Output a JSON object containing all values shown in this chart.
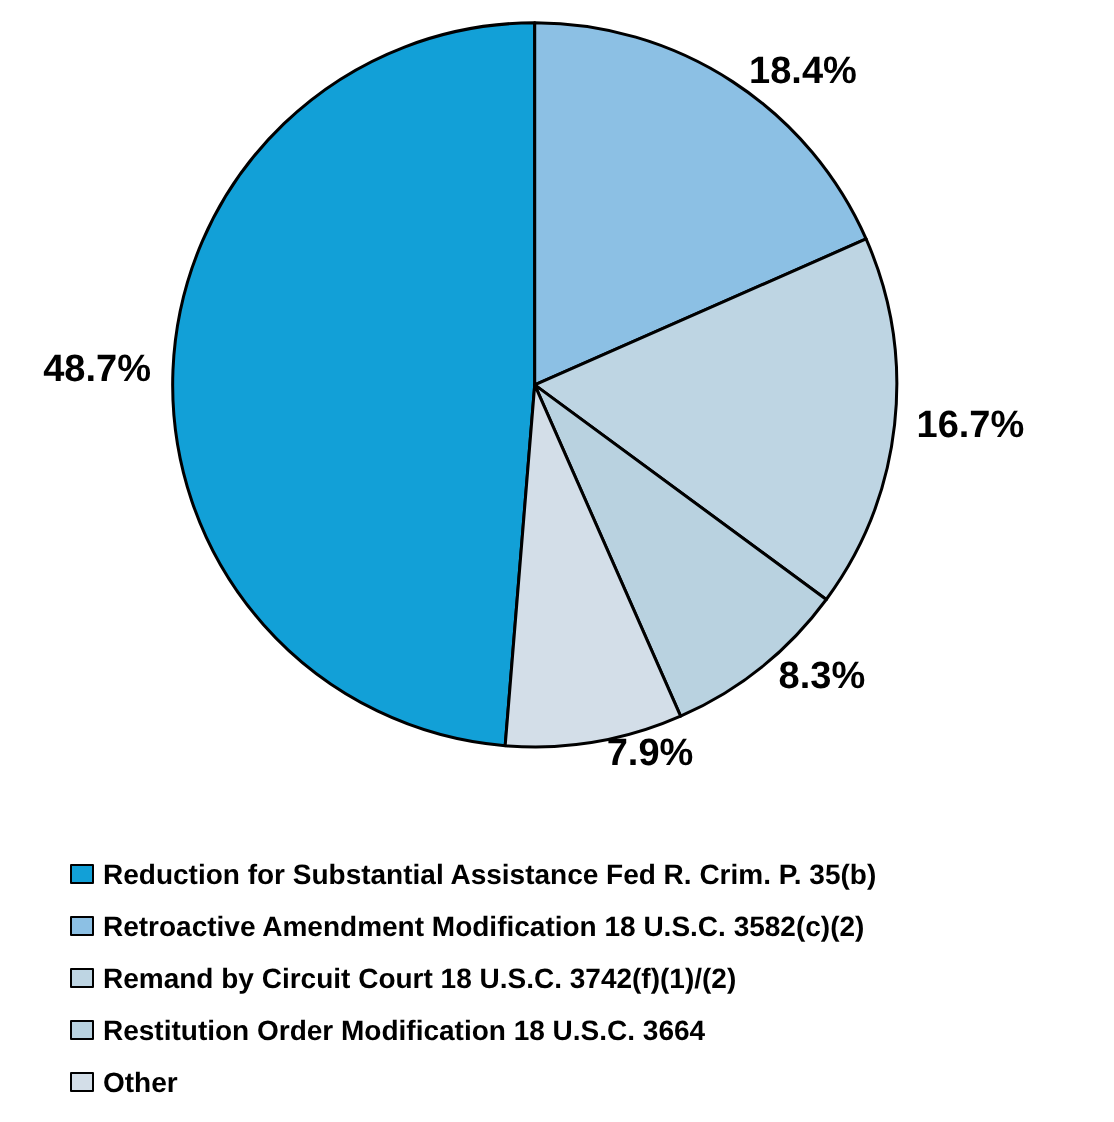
{
  "chart_data": {
    "type": "pie",
    "categories": [
      "Reduction for Substantial Assistance Fed R. Crim. P. 35(b)",
      "Retroactive Amendment Modification 18 U.S.C. 3582(c)(2)",
      "Remand by Circuit Court 18 U.S.C. 3742(f)(1)/(2)",
      "Restitution Order Modification 18 U.S.C. 3664",
      "Other"
    ],
    "values": [
      48.7,
      18.4,
      16.7,
      8.3,
      7.9
    ],
    "colors": [
      "#12a0d7",
      "#8cc0e4",
      "#bed5e3",
      "#b9d2e0",
      "#d3dee8"
    ],
    "value_labels": [
      "48.7%",
      "18.4%",
      "16.7%",
      "8.3%",
      "7.9%"
    ],
    "legend": "bottom"
  }
}
